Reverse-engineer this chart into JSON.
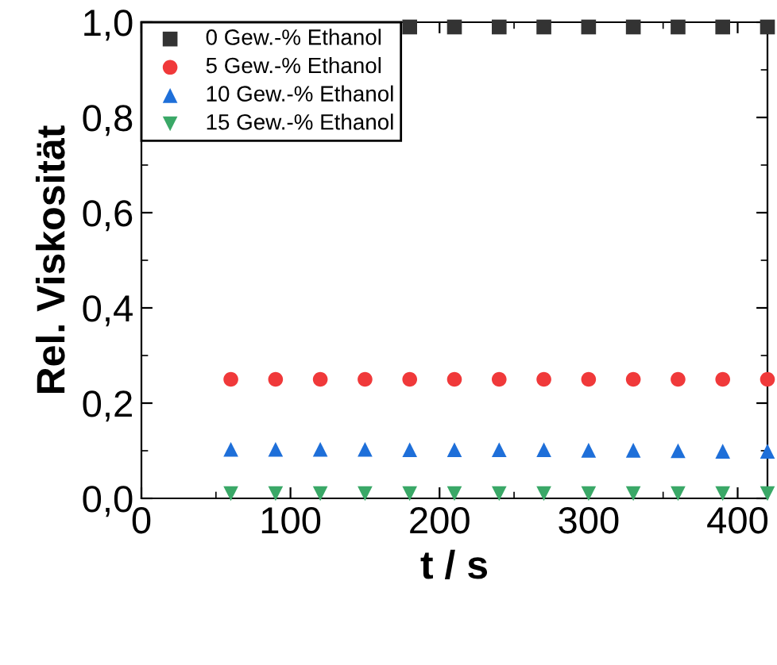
{
  "chart_data": {
    "type": "scatter",
    "xlabel": "t / s",
    "ylabel": "Rel. Viskosität",
    "x": [
      60,
      90,
      120,
      150,
      180,
      210,
      240,
      270,
      300,
      330,
      360,
      390,
      420
    ],
    "series": [
      {
        "name": "0 Gew.-% Ethanol",
        "color": "#333333",
        "marker": "square",
        "values": [
          null,
          null,
          null,
          null,
          0.99,
          0.99,
          0.99,
          0.99,
          0.99,
          0.99,
          0.99,
          0.99,
          0.99
        ]
      },
      {
        "name": "5 Gew.-% Ethanol",
        "color": "#f0393a",
        "marker": "circle",
        "values": [
          0.25,
          0.25,
          0.25,
          0.25,
          0.25,
          0.25,
          0.25,
          0.25,
          0.25,
          0.25,
          0.25,
          0.25,
          0.25
        ]
      },
      {
        "name": "10 Gew.-% Ethanol",
        "color": "#1e6fd9",
        "marker": "triangle",
        "values": [
          0.103,
          0.103,
          0.103,
          0.103,
          0.102,
          0.102,
          0.102,
          0.102,
          0.101,
          0.101,
          0.1,
          0.099,
          0.099
        ]
      },
      {
        "name": "15 Gew.-% Ethanol",
        "color": "#3aa867",
        "marker": "triangle_down",
        "values": [
          0.01,
          0.01,
          0.01,
          0.01,
          0.01,
          0.01,
          0.01,
          0.01,
          0.01,
          0.01,
          0.01,
          0.01,
          0.01
        ]
      }
    ],
    "xlim": [
      0,
      420
    ],
    "xticks": [
      0,
      100,
      200,
      300,
      400
    ],
    "ylim": [
      0,
      1
    ],
    "yticks": [
      {
        "value": 0,
        "label": "0,0"
      },
      {
        "value": 0.2,
        "label": "0,2"
      },
      {
        "value": 0.4,
        "label": "0,4"
      },
      {
        "value": 0.6,
        "label": "0,6"
      },
      {
        "value": 0.8,
        "label": "0,8"
      },
      {
        "value": 1,
        "label": "1,0"
      }
    ],
    "legend": "top left",
    "grid": false
  }
}
